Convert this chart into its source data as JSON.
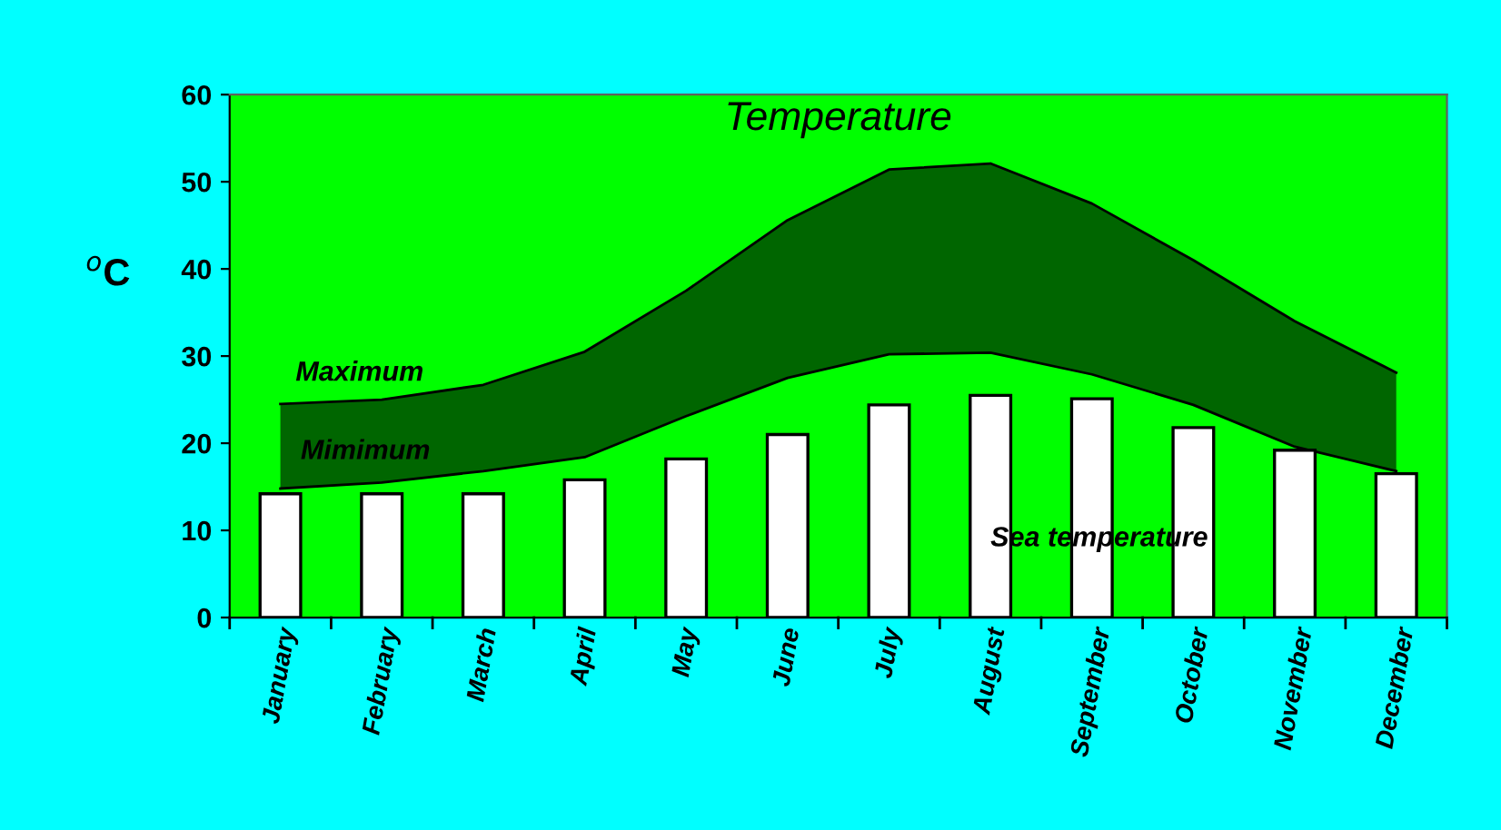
{
  "chart_data": {
    "type": "bar",
    "title": "Temperature",
    "ylabel": "$^{o}$C",
    "categories": [
      "January",
      "February",
      "March",
      "April",
      "May",
      "June",
      "July",
      "August",
      "September",
      "October",
      "November",
      "December"
    ],
    "series": [
      {
        "name": "Sea temperature",
        "color": "#ffffff",
        "values": [
          14.2,
          14.2,
          14.2,
          15.8,
          18.2,
          21.0,
          24.4,
          25.5,
          25.1,
          21.8,
          19.2,
          16.5
        ]
      },
      {
        "name": "Maximum",
        "type": "area",
        "color": "#006600",
        "values": [
          24.5,
          25,
          26.7,
          30.5,
          37.5,
          45.6,
          51.4,
          52.1,
          47.5,
          41,
          34,
          28.1
        ]
      },
      {
        "name": "Mimimum",
        "type": "line",
        "color": "#000000",
        "values": [
          14.8,
          15.5,
          16.8,
          18.4,
          23.1,
          27.5,
          30.2,
          30.4,
          27.9,
          24.4,
          19.6,
          16.8
        ]
      }
    ],
    "ylim": [
      0,
      60
    ],
    "yticks": [
      0,
      10,
      20,
      30,
      40,
      50,
      60
    ],
    "grid": false,
    "legend": false
  }
}
